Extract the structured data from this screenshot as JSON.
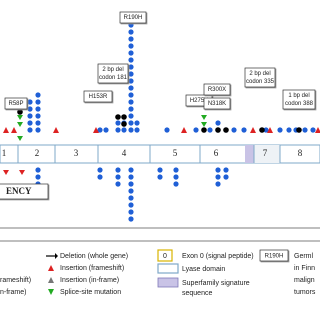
{
  "gene": {
    "exons": [
      "1",
      "2",
      "3",
      "4",
      "5",
      "6",
      "7",
      "8"
    ],
    "mutations": [
      {
        "lines": [
          "R58P"
        ]
      },
      {
        "lines": [
          "H153R"
        ]
      },
      {
        "lines": [
          "2 bp del",
          "codon 181"
        ]
      },
      {
        "lines": [
          "R190H"
        ]
      },
      {
        "lines": [
          "H275Y"
        ]
      },
      {
        "lines": [
          "R300X"
        ]
      },
      {
        "lines": [
          "N318K"
        ]
      },
      {
        "lines": [
          "2 bp del",
          "codon 335"
        ]
      },
      {
        "lines": [
          "1 bp del",
          "codon 388"
        ]
      }
    ]
  },
  "panel_label": "ENCY",
  "legend": {
    "left": [
      "rameshift)",
      "n-frame)"
    ],
    "symbols": [
      "Deletion (whole gene)",
      "Insertion (frameshift)",
      "Insertion (in-frame)",
      "Splice-site mutation"
    ],
    "exon0_box": "0",
    "domains": [
      "Exon 0 (signal peptide)",
      "Lyase domain",
      "Superfamily signature",
      "sequence"
    ],
    "example_box": "R190H",
    "example_text": [
      "Germl",
      "in Finn",
      "malign",
      "tumors"
    ]
  }
}
